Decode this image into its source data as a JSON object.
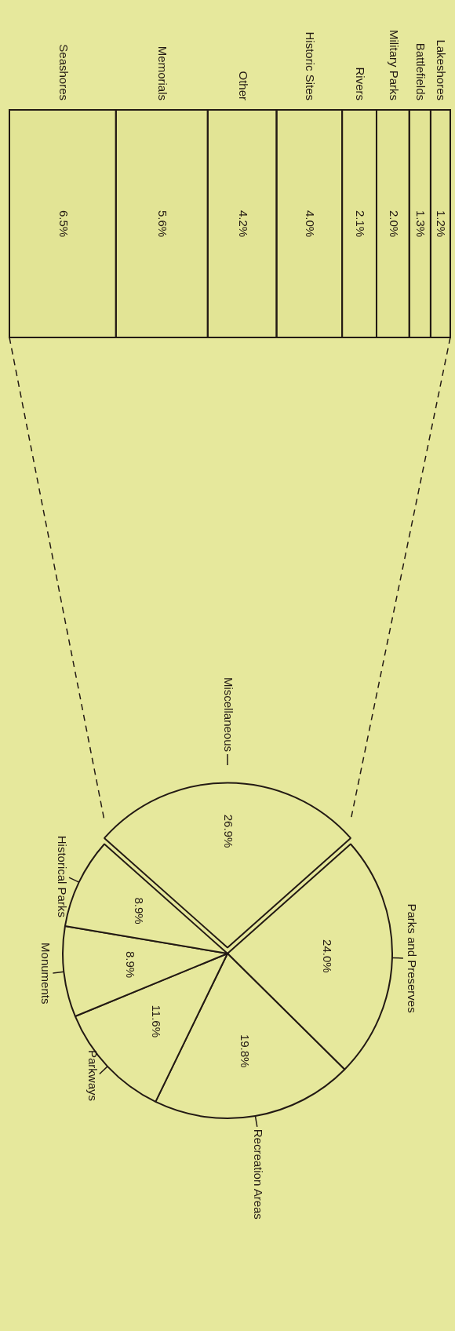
{
  "chart_data": [
    {
      "type": "bar",
      "stacked": true,
      "orientation": "horizontal",
      "categories": [
        null
      ],
      "series": [
        {
          "name": "Seashores",
          "color": "#e2e495",
          "values": [
            6.5
          ],
          "value_labels": [
            "6.5%"
          ]
        },
        {
          "name": "Memorials",
          "color": "#e2e495",
          "values": [
            5.6
          ],
          "value_labels": [
            "5.6%"
          ]
        },
        {
          "name": "Other",
          "color": "#e2e495",
          "values": [
            4.2
          ],
          "value_labels": [
            "4.2%"
          ]
        },
        {
          "name": "Historic Sites",
          "color": "#e2e495",
          "values": [
            4.0
          ],
          "value_labels": [
            "4.0%"
          ]
        },
        {
          "name": "Rivers",
          "color": "#e2e495",
          "values": [
            2.1
          ],
          "value_labels": [
            "2.1%"
          ]
        },
        {
          "name": "Military Parks",
          "color": "#e2e495",
          "values": [
            2.0
          ],
          "value_labels": [
            "2.0%"
          ]
        },
        {
          "name": "Battlefields",
          "color": "#e2e495",
          "values": [
            1.3
          ],
          "value_labels": [
            "1.3%"
          ]
        },
        {
          "name": "Lakeshores",
          "color": "#e2e495",
          "values": [
            1.2
          ],
          "value_labels": [
            "1.2%"
          ]
        }
      ],
      "legend": false
    },
    {
      "type": "pie",
      "categories": [
        "Miscellaneous",
        "Parks and Preserves",
        "Recreation Areas",
        "Parkways",
        "Monuments",
        "Historical Parks"
      ],
      "values": [
        26.9,
        24.0,
        19.8,
        11.6,
        8.9,
        8.9
      ],
      "value_labels": [
        "26.9%",
        "24.0%",
        "19.8%",
        "11.6%",
        "8.9%",
        "8.9%"
      ],
      "colors": [
        "#e6e89c",
        "#e6e89c",
        "#e6e89c",
        "#e6e89c",
        "#e6e89c",
        "#e6e89c"
      ],
      "legend": false
    }
  ]
}
